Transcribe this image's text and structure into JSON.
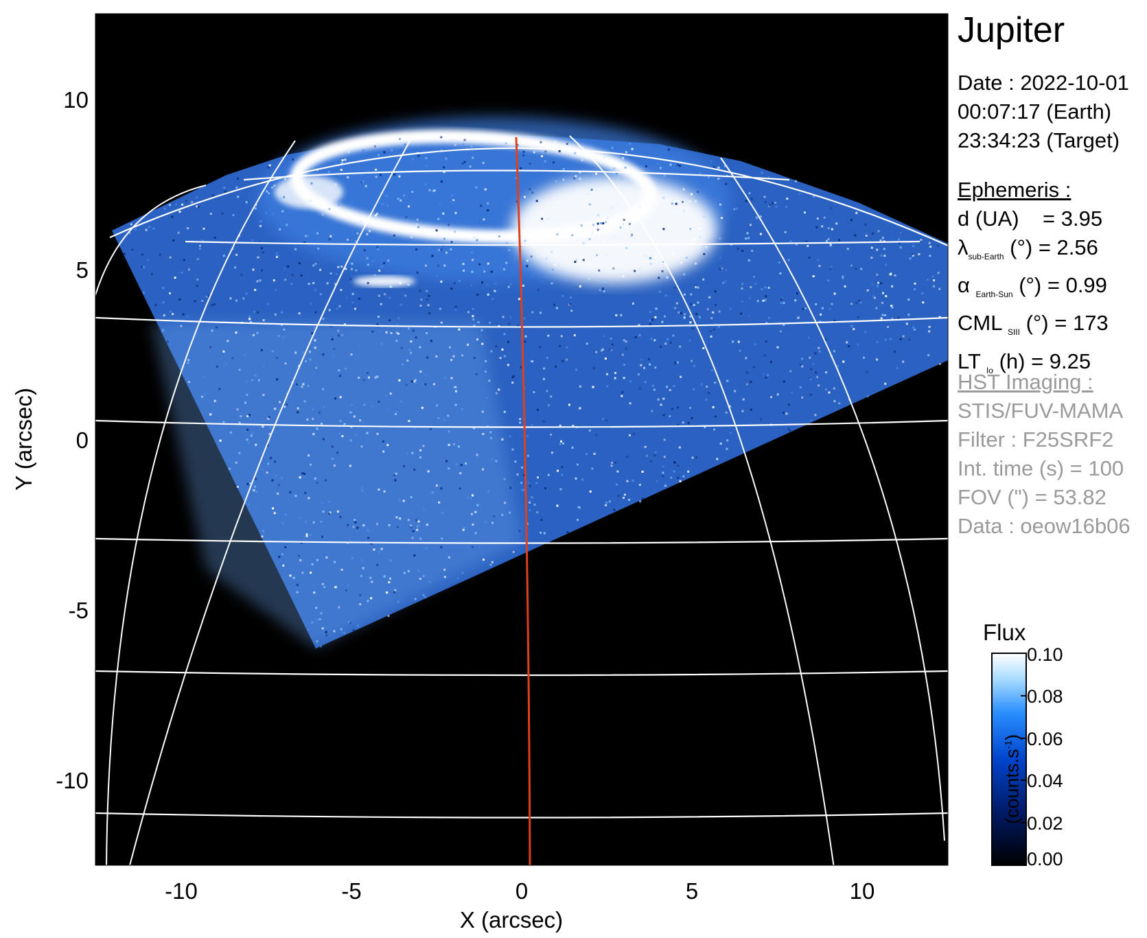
{
  "title": "Jupiter",
  "date": {
    "line1": "Date : 2022-10-01",
    "line2": "00:07:17 (Earth)",
    "line3": "23:34:23 (Target)"
  },
  "ephemeris": {
    "heading": "Ephemeris :",
    "d": {
      "label": "d (UA)",
      "value": "= 3.95"
    },
    "lat": {
      "sym": "λ",
      "sub": "sub-Earth",
      "rest": "(°) = 2.56"
    },
    "alpha": {
      "sym": "α",
      "sub": "Earth-Sun",
      "rest": "(°) = 0.99"
    },
    "cml": {
      "sym": "CML",
      "sub": "SIII",
      "rest": "(°) = 173"
    },
    "lt": {
      "sym": "LT",
      "sub": "Io",
      "rest": "(h) = 9.25"
    }
  },
  "hst": {
    "heading": "HST Imaging :",
    "instrument": "STIS/FUV-MAMA",
    "filter": "Filter : F25SRF2",
    "int_time": "Int. time (s) = 100",
    "fov": "FOV (\") = 53.82",
    "data": "Data : oeow16b06"
  },
  "axes": {
    "xlabel": "X (arcsec)",
    "ylabel": "Y (arcsec)",
    "xticks": [
      "-10",
      "-5",
      "0",
      "5",
      "10"
    ],
    "yticks": [
      "10",
      "5",
      "0",
      "-5",
      "-10"
    ]
  },
  "colorbar": {
    "title": "Flux",
    "unit": "(counts.s",
    "unit_sup": "-1",
    "unit_end": ")",
    "ticks": [
      "0.10",
      "0.08",
      "0.06",
      "0.04",
      "0.02",
      "0.00"
    ],
    "colors": [
      "#000000",
      "#001a66",
      "#0044cc",
      "#2a8fff",
      "#aadcff",
      "#ffffff"
    ]
  },
  "colors": {
    "meridian": "#e0401a",
    "grid": "#ffffff",
    "background": "#000000"
  }
}
